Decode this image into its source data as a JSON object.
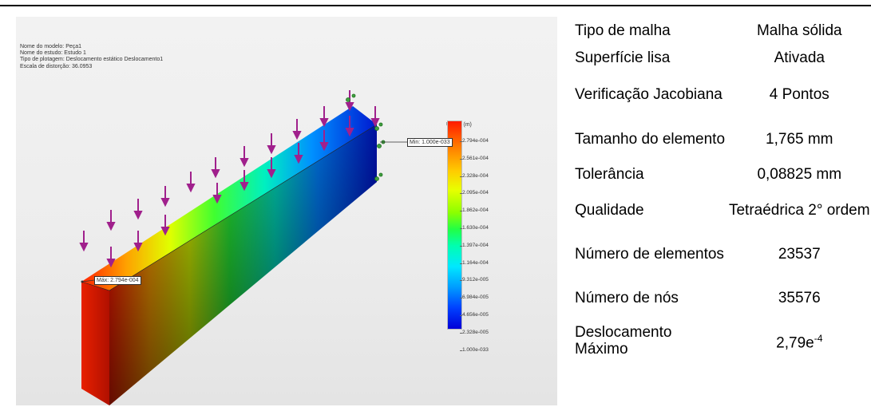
{
  "figure": {
    "info_lines": [
      "Nome do modelo: Peça1",
      "Nome do estudo: Estudo 1",
      "Tipo de plotagem: Deslocamento estático Deslocamento1",
      "Escala de distorção: 36.0953"
    ],
    "legend_title": "URES (m)",
    "legend_ticks": [
      "2.794e-004",
      "2.561e-004",
      "2.328e-004",
      "2.095e-004",
      "1.862e-004",
      "1.630e-004",
      "1.397e-004",
      "1.164e-004",
      "9.312e-005",
      "6.984e-005",
      "4.656e-005",
      "2.328e-005",
      "1.000e-033"
    ],
    "min_label": "Min: 1.000e-033",
    "max_label": "Máx: 2.794e-004"
  },
  "table": {
    "rows": [
      {
        "label": "Tipo de malha",
        "value": "Malha sólida"
      },
      {
        "label": "Superfície lisa",
        "value": "Ativada"
      },
      {
        "label": "Verificação Jacobiana",
        "value": "4 Pontos"
      },
      {
        "label": "Tamanho do elemento",
        "value": "1,765 mm"
      },
      {
        "label": "Tolerância",
        "value": "0,08825 mm"
      },
      {
        "label": "Qualidade",
        "value": "Tetraédrica 2° ordem"
      },
      {
        "label": "Número de elementos",
        "value": "23537"
      },
      {
        "label": "Número de nós",
        "value": "35576"
      },
      {
        "label": "Deslocamento Máximo",
        "value": "2,79e",
        "value_sup": "-4"
      }
    ]
  }
}
